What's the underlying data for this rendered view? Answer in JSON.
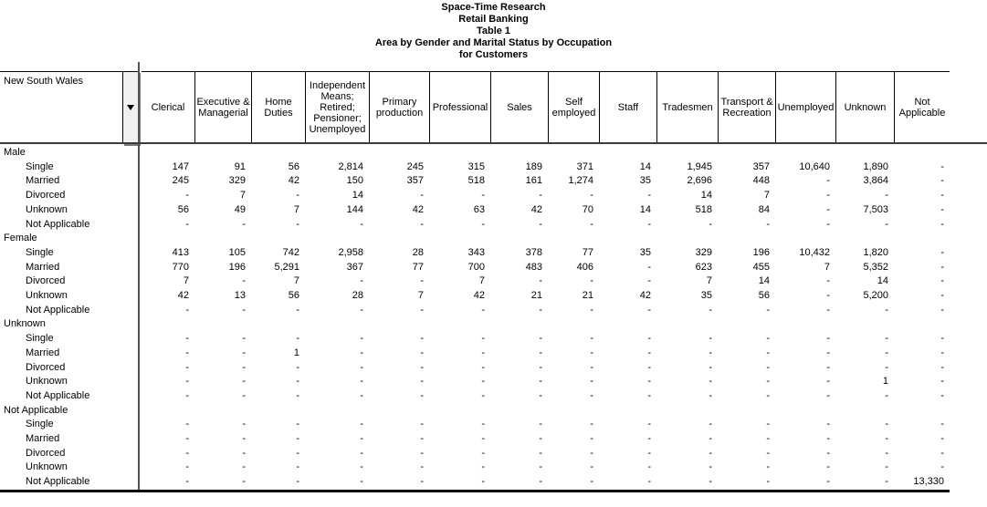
{
  "title_lines": [
    "Space-Time Research",
    "Retail Banking",
    "Table 1",
    "Area by Gender and Marital Status by Occupation",
    "for Customers"
  ],
  "table": {
    "area_label": "New South Wales",
    "dropdown_icon": "triangle-down",
    "columns": [
      "Clerical",
      "Executive & Managerial",
      "Home Duties",
      "Independent Means; Retired; Pensioner; Unemployed",
      "Primary production",
      "Professional",
      "Sales",
      "Self employed",
      "Staff",
      "Tradesmen",
      "Transport & Recreation",
      "Unemployed",
      "Unknown",
      "Not Applicable"
    ],
    "row_groups": [
      {
        "label": "Male",
        "rows": [
          {
            "label": "Single",
            "values": [
              "147",
              "91",
              "56",
              "2,814",
              "245",
              "315",
              "189",
              "371",
              "14",
              "1,945",
              "357",
              "10,640",
              "1,890",
              "-"
            ]
          },
          {
            "label": "Married",
            "values": [
              "245",
              "329",
              "42",
              "150",
              "357",
              "518",
              "161",
              "1,274",
              "35",
              "2,696",
              "448",
              "-",
              "3,864",
              "-"
            ]
          },
          {
            "label": "Divorced",
            "values": [
              "-",
              "7",
              "-",
              "14",
              "-",
              "-",
              "-",
              "-",
              "-",
              "14",
              "7",
              "-",
              "-",
              "-"
            ]
          },
          {
            "label": "Unknown",
            "values": [
              "56",
              "49",
              "7",
              "144",
              "42",
              "63",
              "42",
              "70",
              "14",
              "518",
              "84",
              "-",
              "7,503",
              "-"
            ]
          },
          {
            "label": "Not Applicable",
            "values": [
              "-",
              "-",
              "-",
              "-",
              "-",
              "-",
              "-",
              "-",
              "-",
              "-",
              "-",
              "-",
              "-",
              "-"
            ]
          }
        ]
      },
      {
        "label": "Female",
        "rows": [
          {
            "label": "Single",
            "values": [
              "413",
              "105",
              "742",
              "2,958",
              "28",
              "343",
              "378",
              "77",
              "35",
              "329",
              "196",
              "10,432",
              "1,820",
              "-"
            ]
          },
          {
            "label": "Married",
            "values": [
              "770",
              "196",
              "5,291",
              "367",
              "77",
              "700",
              "483",
              "406",
              "-",
              "623",
              "455",
              "7",
              "5,352",
              "-"
            ]
          },
          {
            "label": "Divorced",
            "values": [
              "7",
              "-",
              "7",
              "-",
              "-",
              "7",
              "-",
              "-",
              "-",
              "7",
              "14",
              "-",
              "14",
              "-"
            ]
          },
          {
            "label": "Unknown",
            "values": [
              "42",
              "13",
              "56",
              "28",
              "7",
              "42",
              "21",
              "21",
              "42",
              "35",
              "56",
              "-",
              "5,200",
              "-"
            ]
          },
          {
            "label": "Not Applicable",
            "values": [
              "-",
              "-",
              "-",
              "-",
              "-",
              "-",
              "-",
              "-",
              "-",
              "-",
              "-",
              "-",
              "-",
              "-"
            ]
          }
        ]
      },
      {
        "label": "Unknown",
        "rows": [
          {
            "label": "Single",
            "values": [
              "-",
              "-",
              "-",
              "-",
              "-",
              "-",
              "-",
              "-",
              "-",
              "-",
              "-",
              "-",
              "-",
              "-"
            ]
          },
          {
            "label": "Married",
            "values": [
              "-",
              "-",
              "1",
              "-",
              "-",
              "-",
              "-",
              "-",
              "-",
              "-",
              "-",
              "-",
              "-",
              "-"
            ]
          },
          {
            "label": "Divorced",
            "values": [
              "-",
              "-",
              "-",
              "-",
              "-",
              "-",
              "-",
              "-",
              "-",
              "-",
              "-",
              "-",
              "-",
              "-"
            ]
          },
          {
            "label": "Unknown",
            "values": [
              "-",
              "-",
              "-",
              "-",
              "-",
              "-",
              "-",
              "-",
              "-",
              "-",
              "-",
              "-",
              "1",
              "-"
            ]
          },
          {
            "label": "Not Applicable",
            "values": [
              "-",
              "-",
              "-",
              "-",
              "-",
              "-",
              "-",
              "-",
              "-",
              "-",
              "-",
              "-",
              "-",
              "-"
            ]
          }
        ]
      },
      {
        "label": "Not Applicable",
        "rows": [
          {
            "label": "Single",
            "values": [
              "-",
              "-",
              "-",
              "-",
              "-",
              "-",
              "-",
              "-",
              "-",
              "-",
              "-",
              "-",
              "-",
              "-"
            ]
          },
          {
            "label": "Married",
            "values": [
              "-",
              "-",
              "-",
              "-",
              "-",
              "-",
              "-",
              "-",
              "-",
              "-",
              "-",
              "-",
              "-",
              "-"
            ]
          },
          {
            "label": "Divorced",
            "values": [
              "-",
              "-",
              "-",
              "-",
              "-",
              "-",
              "-",
              "-",
              "-",
              "-",
              "-",
              "-",
              "-",
              "-"
            ]
          },
          {
            "label": "Unknown",
            "values": [
              "-",
              "-",
              "-",
              "-",
              "-",
              "-",
              "-",
              "-",
              "-",
              "-",
              "-",
              "-",
              "-",
              "-"
            ]
          },
          {
            "label": "Not Applicable",
            "values": [
              "-",
              "-",
              "-",
              "-",
              "-",
              "-",
              "-",
              "-",
              "-",
              "-",
              "-",
              "-",
              "-",
              "13,330"
            ]
          }
        ]
      }
    ]
  },
  "colors": {
    "background": "#ffffff",
    "text": "#000000",
    "button_face": "#f0f0f0",
    "grid_line": "#000000",
    "divider_line": "#555555"
  }
}
